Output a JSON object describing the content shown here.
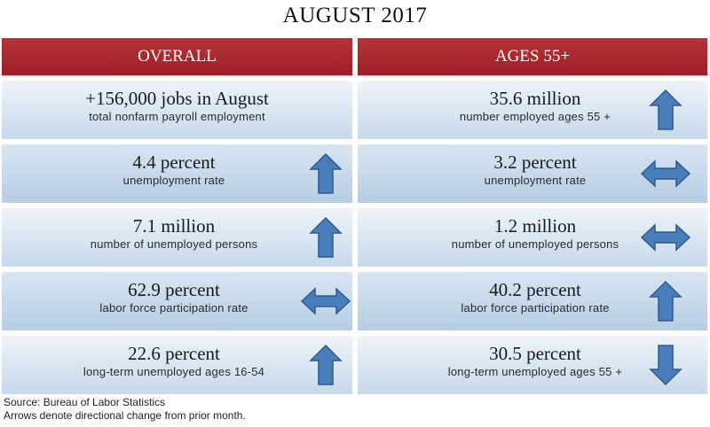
{
  "title": "AUGUST 2017",
  "headers": {
    "left": "OVERALL",
    "right": "AGES 55+"
  },
  "arrow_color": "#4a7eba",
  "overall": [
    {
      "value": "+156,000 jobs in August",
      "label": "total nonfarm payroll employment",
      "arrow": "none"
    },
    {
      "value": "4.4 percent",
      "label": "unemployment rate",
      "arrow": "up-arrow-icon"
    },
    {
      "value": "7.1 million",
      "label": "number of unemployed persons",
      "arrow": "up-arrow-icon"
    },
    {
      "value": "62.9 percent",
      "label": "labor force participation rate",
      "arrow": "left-right-arrow-icon"
    },
    {
      "value": "22.6 percent",
      "label": "long-term unemployed ages 16-54",
      "arrow": "up-arrow-icon"
    }
  ],
  "ages55": [
    {
      "value": "35.6 million",
      "label": "number employed ages 55 +",
      "arrow": "up-arrow-icon"
    },
    {
      "value": "3.2 percent",
      "label": "unemployment rate",
      "arrow": "left-right-arrow-icon"
    },
    {
      "value": "1.2 million",
      "label": "number of unemployed persons",
      "arrow": "left-right-arrow-icon"
    },
    {
      "value": "40.2 percent",
      "label": "labor force participation rate",
      "arrow": "up-arrow-icon"
    },
    {
      "value": "30.5 percent",
      "label": "long-term unemployed ages 55 +",
      "arrow": "down-arrow-icon"
    }
  ],
  "footer": {
    "source": "Source: Bureau of Labor Statistics",
    "note": "Arrows denote directional change from prior month."
  }
}
